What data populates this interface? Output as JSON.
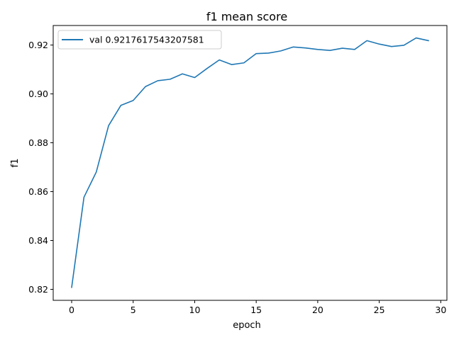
{
  "chart_data": {
    "type": "line",
    "title": "f1 mean score",
    "xlabel": "epoch",
    "ylabel": "f1",
    "xlim": [
      -1.5,
      30.5
    ],
    "ylim": [
      0.8155,
      0.928
    ],
    "xticks": [
      0,
      5,
      10,
      15,
      20,
      25,
      30
    ],
    "yticks": [
      0.82,
      0.84,
      0.86,
      0.88,
      0.9,
      0.92
    ],
    "ytick_labels": [
      "0.82",
      "0.84",
      "0.86",
      "0.88",
      "0.90",
      "0.92"
    ],
    "grid": false,
    "legend": "upper-left",
    "series": [
      {
        "name": "val 0.9217617543207581",
        "color": "#1f77b4",
        "x": [
          0,
          1,
          2,
          3,
          4,
          5,
          6,
          7,
          8,
          9,
          10,
          11,
          12,
          13,
          14,
          15,
          16,
          17,
          18,
          19,
          20,
          21,
          22,
          23,
          24,
          25,
          26,
          27,
          28,
          29
        ],
        "y": [
          0.8208,
          0.8577,
          0.868,
          0.887,
          0.8953,
          0.8973,
          0.903,
          0.9054,
          0.906,
          0.9082,
          0.9067,
          0.9104,
          0.9139,
          0.912,
          0.9127,
          0.9165,
          0.9167,
          0.9176,
          0.9192,
          0.9188,
          0.9182,
          0.9178,
          0.9187,
          0.9182,
          0.9218,
          0.9204,
          0.9194,
          0.9199,
          0.9229,
          0.9218
        ]
      }
    ]
  }
}
